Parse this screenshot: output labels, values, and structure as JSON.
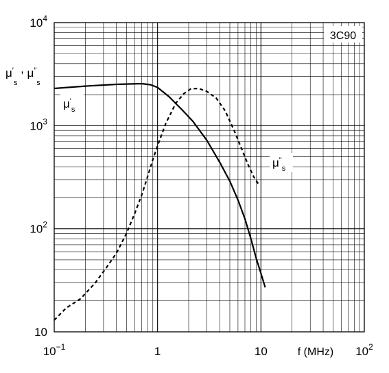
{
  "chart_data": {
    "type": "line",
    "title": "",
    "material_label": "3C90",
    "xlabel": "f  (MHz)",
    "ylabel": "μ's , μ\"s",
    "x_scale": "log",
    "y_scale": "log",
    "xlim": [
      0.1,
      100
    ],
    "ylim": [
      10,
      10000
    ],
    "grid": true,
    "x_ticks": [
      {
        "value": 0.1,
        "base": "10",
        "exp": "−1"
      },
      {
        "value": 1,
        "base": "1",
        "exp": ""
      },
      {
        "value": 10,
        "base": "10",
        "exp": ""
      },
      {
        "value": 100,
        "base": "10",
        "exp": "2"
      }
    ],
    "y_ticks": [
      {
        "value": 10,
        "base": "10",
        "exp": ""
      },
      {
        "value": 100,
        "base": "10",
        "exp": "2"
      },
      {
        "value": 1000,
        "base": "10",
        "exp": "3"
      },
      {
        "value": 10000,
        "base": "10",
        "exp": "4"
      }
    ],
    "series": [
      {
        "name": "μ's",
        "style": "solid",
        "color": "#000000",
        "points": [
          [
            0.1,
            2300
          ],
          [
            0.2,
            2420
          ],
          [
            0.4,
            2520
          ],
          [
            0.7,
            2560
          ],
          [
            0.85,
            2500
          ],
          [
            1.0,
            2350
          ],
          [
            1.3,
            1900
          ],
          [
            1.7,
            1450
          ],
          [
            2.2,
            1100
          ],
          [
            3.0,
            720
          ],
          [
            4.0,
            440
          ],
          [
            5.0,
            290
          ],
          [
            6.0,
            190
          ],
          [
            7.0,
            125
          ],
          [
            8.0,
            80
          ],
          [
            9.0,
            52
          ],
          [
            10.0,
            37
          ],
          [
            11.0,
            27
          ]
        ]
      },
      {
        "name": "μ\"s",
        "style": "dashed",
        "color": "#000000",
        "points": [
          [
            0.1,
            13
          ],
          [
            0.13,
            17
          ],
          [
            0.18,
            21
          ],
          [
            0.25,
            30
          ],
          [
            0.32,
            42
          ],
          [
            0.4,
            58
          ],
          [
            0.5,
            90
          ],
          [
            0.6,
            140
          ],
          [
            0.7,
            210
          ],
          [
            0.8,
            320
          ],
          [
            0.9,
            470
          ],
          [
            1.0,
            640
          ],
          [
            1.2,
            1050
          ],
          [
            1.5,
            1650
          ],
          [
            1.8,
            2050
          ],
          [
            2.1,
            2280
          ],
          [
            2.5,
            2300
          ],
          [
            3.0,
            2150
          ],
          [
            3.7,
            1850
          ],
          [
            4.5,
            1400
          ],
          [
            5.5,
            900
          ],
          [
            6.5,
            600
          ],
          [
            7.5,
            420
          ],
          [
            8.5,
            320
          ],
          [
            9.5,
            270
          ]
        ]
      }
    ]
  }
}
